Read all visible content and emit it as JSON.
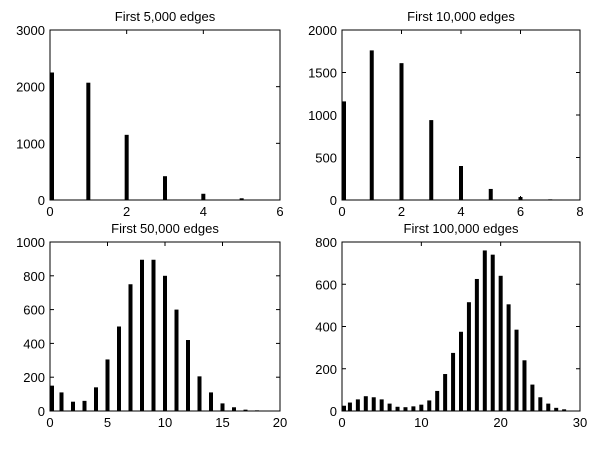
{
  "chart_data": [
    {
      "type": "bar",
      "title": "First 5,000 edges",
      "xlabel": "",
      "ylabel": "",
      "xlim": [
        0,
        6
      ],
      "ylim": [
        0,
        3000
      ],
      "xticks": [
        0,
        2,
        4,
        6
      ],
      "yticks": [
        0,
        1000,
        2000,
        3000
      ],
      "x": [
        0,
        1,
        2,
        3,
        4,
        5
      ],
      "values": [
        2250,
        2070,
        1150,
        420,
        110,
        30
      ]
    },
    {
      "type": "bar",
      "title": "First 10,000 edges",
      "xlabel": "",
      "ylabel": "",
      "xlim": [
        0,
        8
      ],
      "ylim": [
        0,
        2000
      ],
      "xticks": [
        0,
        2,
        4,
        6,
        8
      ],
      "yticks": [
        0,
        500,
        1000,
        1500,
        2000
      ],
      "x": [
        0,
        1,
        2,
        3,
        4,
        5,
        6,
        7
      ],
      "values": [
        1160,
        1760,
        1610,
        940,
        400,
        130,
        35,
        8
      ]
    },
    {
      "type": "bar",
      "title": "First 50,000 edges",
      "xlabel": "",
      "ylabel": "",
      "xlim": [
        0,
        20
      ],
      "ylim": [
        0,
        1000
      ],
      "xticks": [
        0,
        5,
        10,
        15,
        20
      ],
      "yticks": [
        0,
        200,
        400,
        600,
        800,
        1000
      ],
      "x": [
        0,
        1,
        2,
        3,
        4,
        5,
        6,
        7,
        8,
        9,
        10,
        11,
        12,
        13,
        14,
        15,
        16,
        17,
        18
      ],
      "values": [
        150,
        110,
        55,
        60,
        140,
        305,
        500,
        750,
        895,
        895,
        800,
        600,
        420,
        205,
        110,
        45,
        22,
        8,
        4
      ]
    },
    {
      "type": "bar",
      "title": "First 100,000 edges",
      "xlabel": "",
      "ylabel": "",
      "xlim": [
        0,
        30
      ],
      "ylim": [
        0,
        800
      ],
      "xticks": [
        0,
        10,
        20,
        30
      ],
      "yticks": [
        0,
        200,
        400,
        600,
        800
      ],
      "x": [
        0,
        1,
        2,
        3,
        4,
        5,
        6,
        7,
        8,
        9,
        10,
        11,
        12,
        13,
        14,
        15,
        16,
        17,
        18,
        19,
        20,
        21,
        22,
        23,
        24,
        25,
        26,
        27,
        28
      ],
      "values": [
        25,
        40,
        55,
        70,
        65,
        55,
        35,
        20,
        18,
        22,
        30,
        50,
        95,
        175,
        275,
        375,
        515,
        625,
        760,
        740,
        640,
        505,
        385,
        240,
        125,
        65,
        35,
        15,
        8
      ]
    }
  ]
}
